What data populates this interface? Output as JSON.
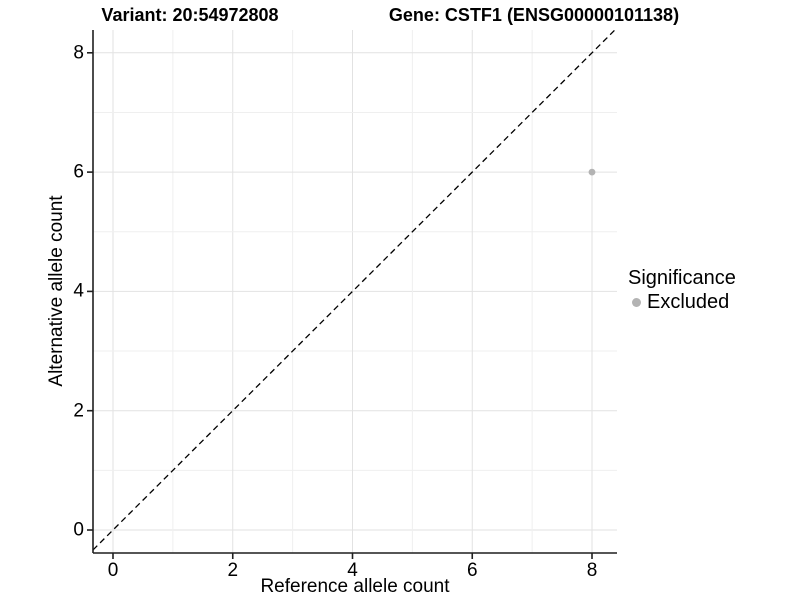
{
  "header": {
    "variant_title": "Variant: 20:54972808",
    "gene_title": "Gene: CSTF1 (ENSG00000101138)"
  },
  "chart_data": {
    "type": "scatter",
    "title_left": "Variant: 20:54972808",
    "title_right": "Gene: CSTF1 (ENSG00000101138)",
    "xlabel": "Reference allele count",
    "ylabel": "Alternative allele count",
    "xlim": [
      -0.35,
      8.42
    ],
    "ylim": [
      -0.39,
      8.42
    ],
    "x_ticks": [
      0,
      2,
      4,
      6,
      8
    ],
    "y_ticks": [
      0,
      2,
      4,
      6,
      8
    ],
    "grid": {
      "show": true,
      "major_every": 2,
      "minor_every": 1
    },
    "reference_line": {
      "equation": "y = x",
      "style": "dashed",
      "color": "#000000"
    },
    "points": [
      {
        "x": 8,
        "y": 6,
        "significance": "Excluded",
        "color": "#b3b3b3"
      }
    ],
    "legend": {
      "position": "right",
      "title": "Significance",
      "entries": [
        {
          "label": "Excluded",
          "color": "#b3b3b3",
          "marker": "circle"
        }
      ]
    },
    "colors": {
      "grid_major": "#e2e2e2",
      "grid_minor": "#efefef",
      "axis_line": "#1f1f1f",
      "point_gray": "#b3b3b3",
      "text": "#000000"
    }
  }
}
